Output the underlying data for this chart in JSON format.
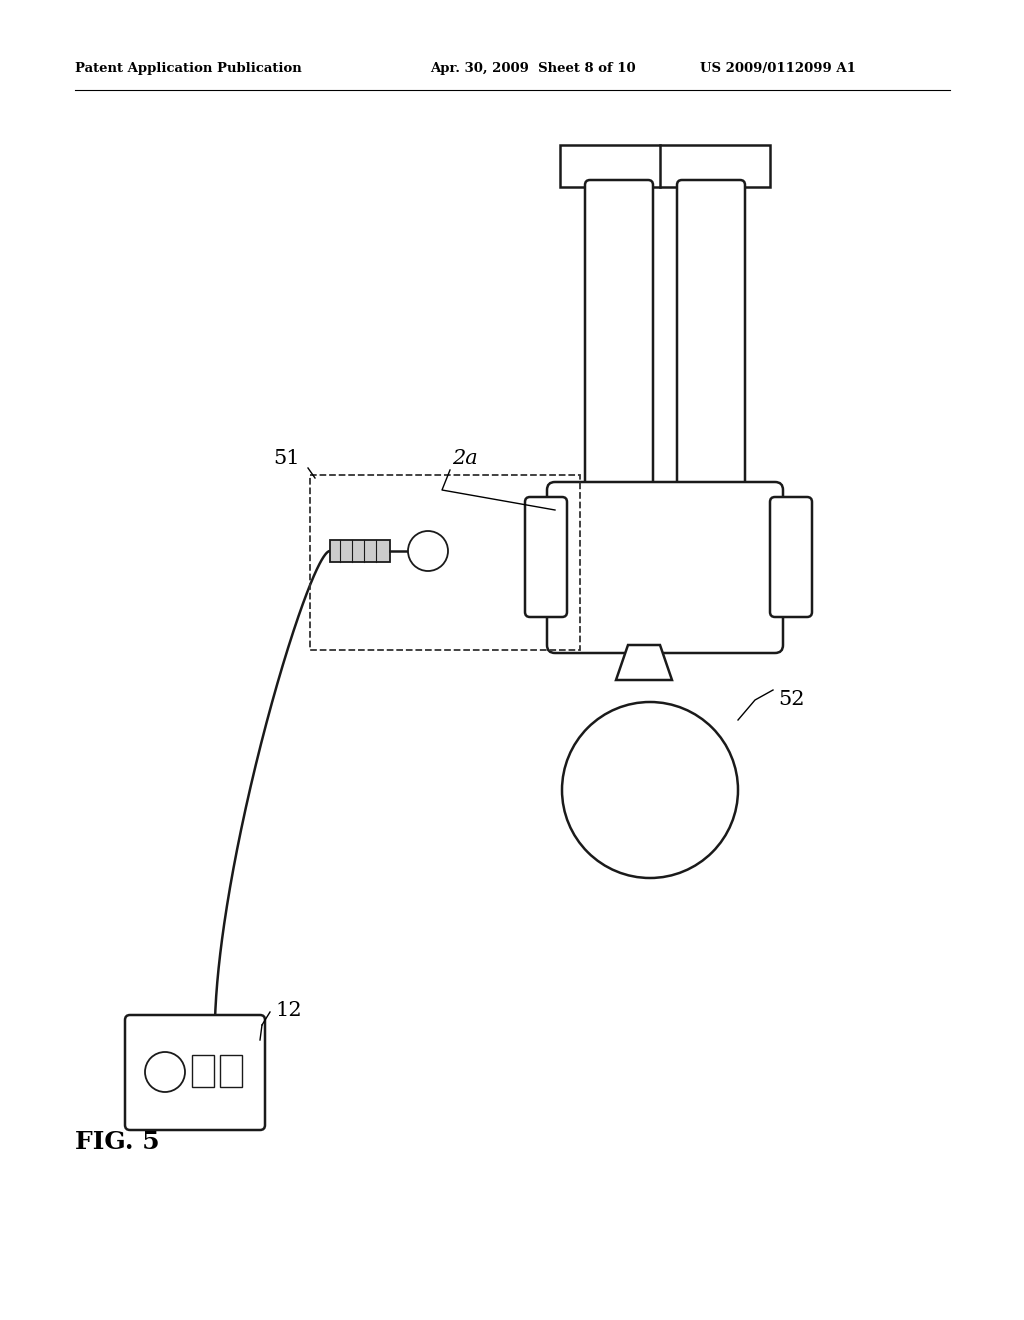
{
  "bg_color": "#ffffff",
  "header_left": "Patent Application Publication",
  "header_mid": "Apr. 30, 2009  Sheet 8 of 10",
  "header_right": "US 2009/0112099 A1",
  "fig_label": "FIG. 5",
  "label_51": "51",
  "label_2a": "2a",
  "label_52": "52",
  "label_12": "12",
  "line_color": "#1a1a1a"
}
